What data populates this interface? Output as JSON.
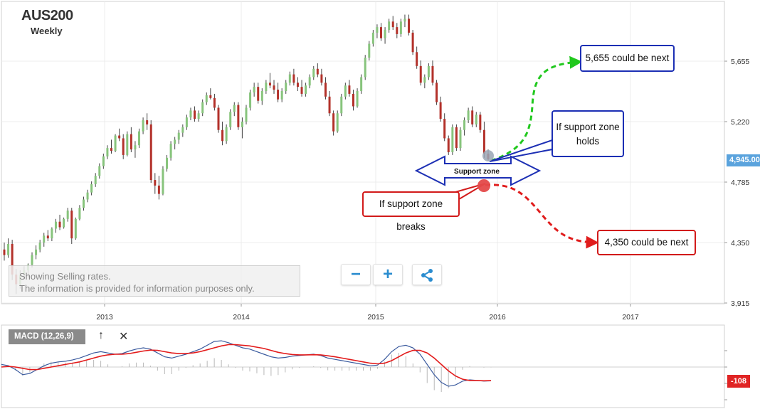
{
  "header": {
    "symbol": "AUS200",
    "timeframe": "Weekly"
  },
  "info_box": {
    "line1": "Showing Selling rates.",
    "line2": "The information is provided for information purposes only."
  },
  "controls": {
    "zoom_out": "−",
    "zoom_in": "+"
  },
  "price_tag": "4,945.00",
  "macd_tag": "-108",
  "macd_legend": "MACD (12,26,9)",
  "macd_buttons": {
    "up": "↑",
    "close": "✕"
  },
  "annotations": {
    "target_up": "5,655 could be next",
    "target_down": "4,350 could be next",
    "holds": [
      "If support zone",
      "holds"
    ],
    "breaks": "If support zone breaks",
    "support_zone": "Support zone"
  },
  "colors": {
    "up_candle": "#87c47c",
    "down_candle": "#b3312a",
    "accent": "#5aa3dd",
    "callout_blue": "#1c2fb4",
    "callout_red": "#d21a1a",
    "arrow_green": "#21c81e",
    "arrow_red": "#e01c1c",
    "macd_line": "#3a5a9e",
    "signal_line": "#e31b1b"
  },
  "chart_data": [
    {
      "type": "candlestick",
      "title": "AUS200",
      "subtitle": "Weekly",
      "y_ticks": [
        "3,915",
        "4,350",
        "4,785",
        "5,220",
        "5,655"
      ],
      "y_tick_values": [
        3915,
        4350,
        4785,
        5220,
        5655
      ],
      "x_ticks": [
        "2013",
        "2014",
        "2015",
        "2016",
        "2017"
      ],
      "ylim": [
        3915,
        6100
      ],
      "x_range": [
        "2012-05",
        "2017-06"
      ],
      "last_price": 4945,
      "support_zone": [
        4785,
        5010
      ],
      "targets": {
        "up": 5655,
        "down": 4350
      },
      "series": [
        {
          "values": [
            [
              4300,
              4350,
              4220,
              4260
            ],
            [
              4260,
              4380,
              4240,
              4340
            ],
            [
              4340,
              4370,
              4080,
              4120
            ],
            [
              4120,
              4160,
              3980,
              4050
            ],
            [
              4050,
              4150,
              4020,
              4120
            ],
            [
              4120,
              4180,
              4090,
              4150
            ],
            [
              4150,
              4200,
              4100,
              4190
            ],
            [
              4190,
              4280,
              4170,
              4260
            ],
            [
              4260,
              4330,
              4230,
              4300
            ],
            [
              4300,
              4370,
              4280,
              4350
            ],
            [
              4350,
              4420,
              4320,
              4400
            ],
            [
              4400,
              4440,
              4360,
              4380
            ],
            [
              4380,
              4460,
              4360,
              4450
            ],
            [
              4450,
              4520,
              4420,
              4500
            ],
            [
              4500,
              4550,
              4440,
              4460
            ],
            [
              4460,
              4530,
              4450,
              4520
            ],
            [
              4520,
              4600,
              4500,
              4580
            ],
            [
              4580,
              4600,
              4340,
              4380
            ],
            [
              4380,
              4530,
              4370,
              4520
            ],
            [
              4520,
              4620,
              4510,
              4600
            ],
            [
              4600,
              4680,
              4580,
              4660
            ],
            [
              4660,
              4730,
              4640,
              4710
            ],
            [
              4710,
              4790,
              4690,
              4770
            ],
            [
              4770,
              4850,
              4750,
              4830
            ],
            [
              4830,
              4920,
              4810,
              4900
            ],
            [
              4900,
              4990,
              4880,
              4970
            ],
            [
              4970,
              5050,
              4950,
              5030
            ],
            [
              5030,
              5090,
              4990,
              5010
            ],
            [
              5010,
              5130,
              5000,
              5120
            ],
            [
              5120,
              5170,
              5080,
              5100
            ],
            [
              5100,
              5130,
              4950,
              4980
            ],
            [
              4980,
              5150,
              4970,
              5130
            ],
            [
              5130,
              5180,
              5000,
              5020
            ],
            [
              5020,
              5080,
              4960,
              5050
            ],
            [
              5050,
              5170,
              5030,
              5150
            ],
            [
              5150,
              5250,
              5130,
              5230
            ],
            [
              5230,
              5280,
              5160,
              5200
            ],
            [
              5200,
              5230,
              4780,
              4800
            ],
            [
              4800,
              4850,
              4700,
              4760
            ],
            [
              4760,
              4830,
              4660,
              4700
            ],
            [
              4700,
              4900,
              4690,
              4880
            ],
            [
              4880,
              4980,
              4860,
              4960
            ],
            [
              4960,
              5080,
              4940,
              5060
            ],
            [
              5060,
              5110,
              5020,
              5090
            ],
            [
              5090,
              5160,
              5060,
              5140
            ],
            [
              5140,
              5200,
              5110,
              5180
            ],
            [
              5180,
              5270,
              5160,
              5250
            ],
            [
              5250,
              5320,
              5230,
              5300
            ],
            [
              5300,
              5330,
              5220,
              5240
            ],
            [
              5240,
              5300,
              5220,
              5280
            ],
            [
              5280,
              5380,
              5260,
              5360
            ],
            [
              5360,
              5430,
              5340,
              5410
            ],
            [
              5410,
              5460,
              5380,
              5390
            ],
            [
              5390,
              5420,
              5300,
              5320
            ],
            [
              5320,
              5340,
              5140,
              5160
            ],
            [
              5160,
              5220,
              5050,
              5080
            ],
            [
              5080,
              5200,
              5060,
              5180
            ],
            [
              5180,
              5310,
              5160,
              5290
            ],
            [
              5290,
              5360,
              5260,
              5340
            ],
            [
              5340,
              5360,
              5160,
              5180
            ],
            [
              5180,
              5250,
              5100,
              5220
            ],
            [
              5220,
              5340,
              5200,
              5320
            ],
            [
              5320,
              5450,
              5300,
              5430
            ],
            [
              5430,
              5500,
              5400,
              5470
            ],
            [
              5470,
              5500,
              5350,
              5370
            ],
            [
              5370,
              5460,
              5340,
              5440
            ],
            [
              5440,
              5520,
              5420,
              5500
            ],
            [
              5500,
              5570,
              5460,
              5480
            ],
            [
              5480,
              5520,
              5420,
              5450
            ],
            [
              5450,
              5500,
              5360,
              5380
            ],
            [
              5380,
              5460,
              5360,
              5440
            ],
            [
              5440,
              5520,
              5420,
              5500
            ],
            [
              5500,
              5580,
              5480,
              5560
            ],
            [
              5560,
              5600,
              5480,
              5500
            ],
            [
              5500,
              5540,
              5440,
              5470
            ],
            [
              5470,
              5520,
              5400,
              5420
            ],
            [
              5420,
              5500,
              5400,
              5480
            ],
            [
              5480,
              5560,
              5460,
              5540
            ],
            [
              5540,
              5620,
              5520,
              5600
            ],
            [
              5600,
              5640,
              5540,
              5560
            ],
            [
              5560,
              5600,
              5480,
              5500
            ],
            [
              5500,
              5540,
              5380,
              5400
            ],
            [
              5400,
              5440,
              5260,
              5280
            ],
            [
              5280,
              5300,
              5120,
              5150
            ],
            [
              5150,
              5300,
              5140,
              5280
            ],
            [
              5280,
              5420,
              5260,
              5400
            ],
            [
              5400,
              5500,
              5380,
              5480
            ],
            [
              5480,
              5520,
              5400,
              5420
            ],
            [
              5420,
              5450,
              5300,
              5330
            ],
            [
              5330,
              5460,
              5320,
              5440
            ],
            [
              5440,
              5560,
              5420,
              5540
            ],
            [
              5540,
              5700,
              5520,
              5680
            ],
            [
              5680,
              5800,
              5660,
              5780
            ],
            [
              5780,
              5880,
              5760,
              5860
            ],
            [
              5860,
              5920,
              5820,
              5900
            ],
            [
              5900,
              5930,
              5800,
              5820
            ],
            [
              5820,
              5900,
              5780,
              5880
            ],
            [
              5880,
              5960,
              5860,
              5940
            ],
            [
              5940,
              5980,
              5880,
              5900
            ],
            [
              5900,
              5930,
              5820,
              5850
            ],
            [
              5850,
              5960,
              5830,
              5940
            ],
            [
              5940,
              5990,
              5900,
              5960
            ],
            [
              5960,
              5990,
              5840,
              5860
            ],
            [
              5860,
              5880,
              5700,
              5720
            ],
            [
              5720,
              5760,
              5600,
              5620
            ],
            [
              5620,
              5660,
              5480,
              5500
            ],
            [
              5500,
              5560,
              5460,
              5540
            ],
            [
              5540,
              5640,
              5520,
              5620
            ],
            [
              5620,
              5660,
              5480,
              5500
            ],
            [
              5500,
              5520,
              5340,
              5360
            ],
            [
              5360,
              5400,
              5220,
              5240
            ],
            [
              5240,
              5280,
              5080,
              5100
            ],
            [
              5100,
              5120,
              4980,
              5000
            ],
            [
              5000,
              5200,
              4980,
              5180
            ],
            [
              5180,
              5200,
              5010,
              5030
            ],
            [
              5030,
              5180,
              5010,
              5160
            ],
            [
              5160,
              5250,
              5120,
              5230
            ],
            [
              5230,
              5320,
              5210,
              5300
            ],
            [
              5300,
              5330,
              5180,
              5200
            ],
            [
              5200,
              5290,
              5180,
              5270
            ],
            [
              5270,
              5290,
              5140,
              5160
            ],
            [
              5160,
              5220,
              4960,
              4990
            ],
            [
              4990,
              5020,
              4940,
              4950
            ]
          ]
        }
      ]
    },
    {
      "type": "line",
      "title": "MACD (12,26,9)",
      "last_value": -108,
      "series": [
        {
          "name": "MACD",
          "values": [
            20,
            10,
            -20,
            -60,
            -50,
            -20,
            10,
            30,
            40,
            45,
            55,
            70,
            90,
            110,
            120,
            110,
            100,
            105,
            125,
            140,
            150,
            140,
            110,
            80,
            70,
            85,
            100,
            120,
            140,
            170,
            200,
            205,
            190,
            170,
            150,
            140,
            120,
            100,
            80,
            70,
            75,
            85,
            90,
            95,
            100,
            90,
            70,
            60,
            50,
            40,
            30,
            20,
            10,
            15,
            60,
            120,
            160,
            170,
            150,
            100,
            20,
            -60,
            -120,
            -150,
            -140,
            -110,
            -100,
            -105,
            -110,
            -108
          ]
        },
        {
          "name": "Signal",
          "values": [
            0,
            5,
            0,
            -10,
            -20,
            -20,
            -10,
            0,
            10,
            20,
            30,
            40,
            55,
            70,
            85,
            95,
            100,
            100,
            105,
            115,
            125,
            132,
            130,
            120,
            110,
            105,
            105,
            110,
            120,
            135,
            150,
            165,
            175,
            175,
            170,
            165,
            155,
            145,
            130,
            115,
            105,
            98,
            95,
            95,
            96,
            95,
            88,
            80,
            70,
            60,
            50,
            40,
            30,
            25,
            30,
            50,
            80,
            110,
            130,
            130,
            110,
            70,
            20,
            -30,
            -70,
            -95,
            -105,
            -105,
            -107,
            -106
          ]
        }
      ]
    }
  ]
}
